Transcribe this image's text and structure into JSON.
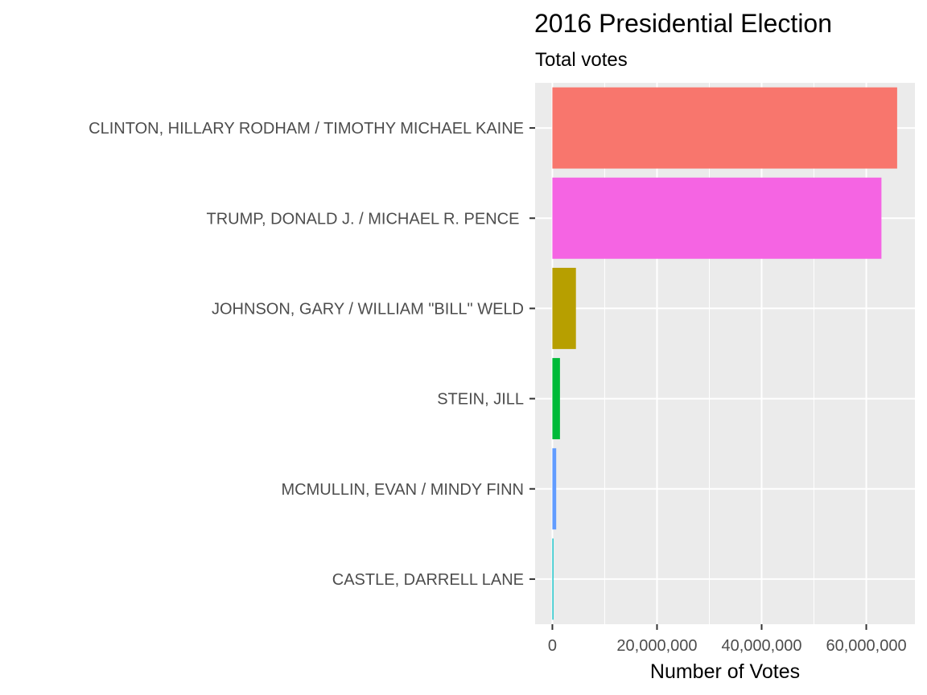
{
  "chart_data": {
    "type": "bar",
    "orientation": "horizontal",
    "title": "2016 Presidential Election",
    "subtitle": "Total votes",
    "xlabel": "Number of Votes",
    "ylabel": "",
    "xlim": [
      -3300000,
      69300000
    ],
    "xticks": [
      0,
      20000000,
      40000000,
      60000000
    ],
    "xtick_labels": [
      "0",
      "20,000,000",
      "40,000,000",
      "60,000,000"
    ],
    "grid": true,
    "legend": "none",
    "categories": [
      "CLINTON, HILLARY RODHAM / TIMOTHY MICHAEL KAINE",
      "TRUMP, DONALD J. / MICHAEL R. PENCE ",
      "JOHNSON, GARY / WILLIAM \"BILL\" WELD",
      "STEIN, JILL",
      "MCMULLIN, EVAN / MINDY FINN",
      "CASTLE, DARRELL LANE"
    ],
    "values": [
      65900000,
      62900000,
      4500000,
      1450000,
      730000,
      200000
    ],
    "colors": [
      "#F8766D",
      "#F564E3",
      "#B79F00",
      "#00BA38",
      "#619CFF",
      "#00BFC4"
    ]
  }
}
